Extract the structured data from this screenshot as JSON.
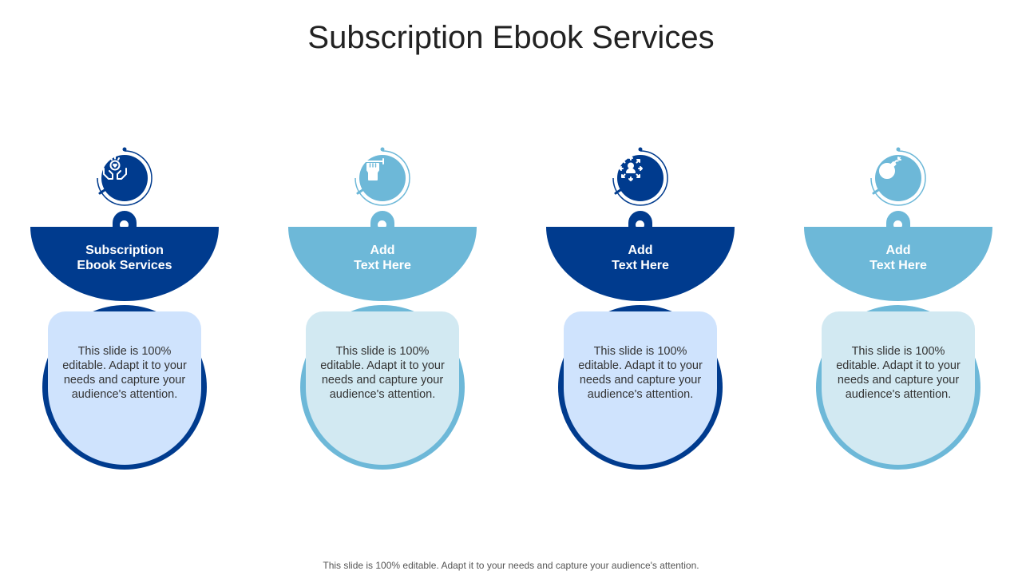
{
  "title": "Subscription Ebook Services",
  "footer": "This slide is 100% editable. Adapt it to your needs and capture your audience's attention.",
  "colors": {
    "dark_blue": "#003b8e",
    "light_blue": "#6db8d8",
    "box_dark_fill": "#cfe3fd",
    "box_light_fill": "#d2e9f2"
  },
  "items": [
    {
      "heading_line1": "Subscription",
      "heading_line2": "Ebook Services",
      "body": "This slide is 100% editable. Adapt it to your needs and capture your audience's attention.",
      "icon": "hands-holding-heart-icon",
      "theme": "dark"
    },
    {
      "heading_line1": "Add",
      "heading_line2": "Text Here",
      "body": "This slide is 100% editable. Adapt it to your needs and capture your audience's attention.",
      "icon": "fist-dumbbell-icon",
      "theme": "light"
    },
    {
      "heading_line1": "Add",
      "heading_line2": "Text Here",
      "body": "This slide is 100% editable. Adapt it to your needs and capture your audience's attention.",
      "icon": "person-arrows-icon",
      "theme": "dark"
    },
    {
      "heading_line1": "Add",
      "heading_line2": "Text Here",
      "body": "This slide is 100% editable. Adapt it to your needs and capture your audience's attention.",
      "icon": "bomb-icon",
      "theme": "light"
    }
  ]
}
